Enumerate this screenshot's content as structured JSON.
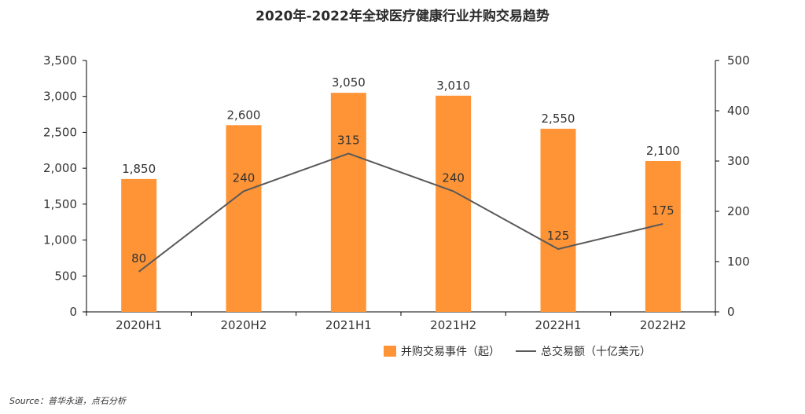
{
  "chart_data": {
    "type": "bar",
    "title": "2020年-2022年全球医疗健康行业并购交易趋势",
    "categories": [
      "2020H1",
      "2020H2",
      "2021H1",
      "2021H2",
      "2022H1",
      "2022H2"
    ],
    "series": [
      {
        "name": "并购交易事件（起）",
        "type": "bar",
        "axis": "left",
        "values": [
          1850,
          2600,
          3050,
          3010,
          2550,
          2100
        ],
        "labels": [
          "1,850",
          "2,600",
          "3,050",
          "3,010",
          "2,550",
          "2,100"
        ],
        "color": "#ff9436"
      },
      {
        "name": "总交易额（十亿美元）",
        "type": "line",
        "axis": "right",
        "values": [
          80,
          240,
          315,
          240,
          125,
          175
        ],
        "labels": [
          "80",
          "240",
          "315",
          "240",
          "125",
          "175"
        ],
        "color": "#595959"
      }
    ],
    "y_left": {
      "range": [
        0,
        3500
      ],
      "ticks": [
        0,
        500,
        1000,
        1500,
        2000,
        2500,
        3000,
        3500
      ],
      "tick_labels": [
        "0",
        "500",
        "1,000",
        "1,500",
        "2,000",
        "2,500",
        "3,000",
        "3,500"
      ]
    },
    "y_right": {
      "range": [
        0,
        500
      ],
      "ticks": [
        0,
        100,
        200,
        300,
        400,
        500
      ],
      "tick_labels": [
        "0",
        "100",
        "200",
        "300",
        "400",
        "500"
      ]
    },
    "grid": false,
    "legend_position": "bottom-right"
  },
  "source": "Source：普华永道，点石分析"
}
